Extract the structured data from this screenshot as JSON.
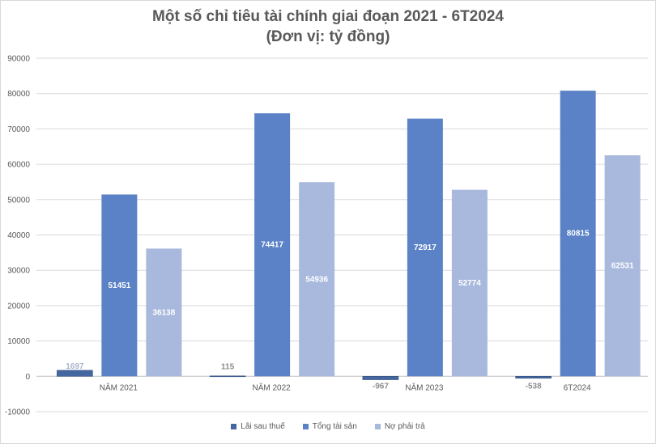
{
  "chart_data": {
    "type": "bar",
    "title": "Một số chỉ tiêu tài chính giai đoạn 2021 - 6T2024",
    "subtitle": "(Đơn vị: tỷ đồng)",
    "categories": [
      "NĂM 2021",
      "NĂM 2022",
      "NĂM 2023",
      "6T2024"
    ],
    "series": [
      {
        "name": "Lãi sau thuế",
        "values": [
          1697,
          115,
          -967,
          -538
        ],
        "color": "#44679f"
      },
      {
        "name": "Tổng tài sản",
        "values": [
          51451,
          74417,
          72917,
          80815
        ],
        "color": "#5b82c6"
      },
      {
        "name": "Nợ phải trả",
        "values": [
          36138,
          54936,
          52774,
          62531
        ],
        "color": "#a9b9dd"
      }
    ],
    "ylim": [
      -10000,
      90000
    ],
    "yticks": [
      -10000,
      0,
      10000,
      20000,
      30000,
      40000,
      50000,
      60000,
      70000,
      80000,
      90000
    ],
    "grid": true,
    "legend_position": "bottom"
  }
}
